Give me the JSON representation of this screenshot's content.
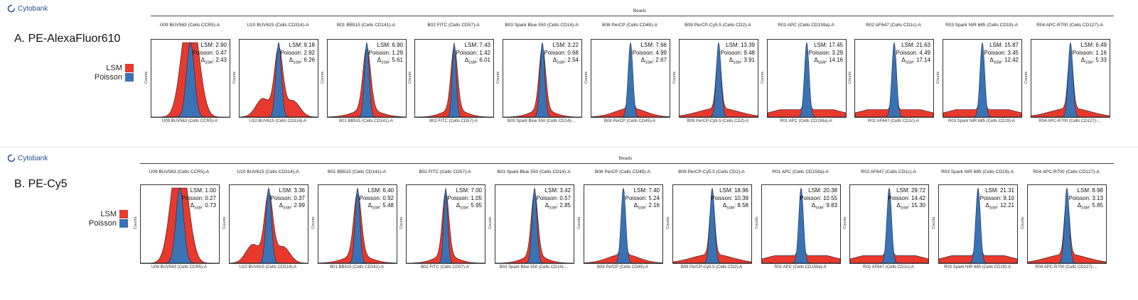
{
  "brand": "Cytobank",
  "legend": {
    "lsm_label": "LSM",
    "poisson_label": "Poisson",
    "lsm_color": "#e8392c",
    "poisson_color": "#3a73b5"
  },
  "group_label": "Beads",
  "y_axis_label": "Counts",
  "delta_label": "Δ",
  "delta_sub": "SSM",
  "plot_titles": [
    "U09 BUV563 (Cells CCR5)-A",
    "U10 BUV615 (Cells CD314)-A",
    "B01 BB515 (Cells CD141)-A",
    "B02 FITC (Cells CD57)-A",
    "B03 Spark Blue 550 (Cells CD14)-A",
    "B08 PerCP (Cells CD45)-A",
    "B09 PerCP-Cy5.5 (Cells CD2)-A",
    "R01 APC (Cells CD159a)-A",
    "R02 AF647 (Cells CD1c)-A",
    "R03 Spark NIR 685 (Cells CD19)-A",
    "R04 APC-R700 (Cells CD127)-A"
  ],
  "x_labels": [
    "U09 BUV563 (Cells CCR5)-A",
    "U10 BUV615 (Cells CD314)-A",
    "B01 BB515 (Cells CD141)-A",
    "B02 FITC (Cells CD57)-A",
    "B03 Spark Blue 550 (Cells CD14)-...",
    "B08 PerCP (Cells CD45)-A",
    "B09 PerCP-Cy5.5 (Cells CD2)-A",
    "R01 APC (Cells CD159a)-A",
    "R02 AF647 (Cells CD1c)-A",
    "R03 Spark NIR 685 (Cells CD19)-A",
    "R04 APC-R700 (Cells CD127)-..."
  ],
  "chart_data": [
    {
      "type": "area",
      "title": "A. PE-AlexaFluor610",
      "series_names": [
        "LSM",
        "Poisson"
      ],
      "plots": [
        {
          "lsm": 2.9,
          "poisson": 0.47,
          "delta": 2.43
        },
        {
          "lsm": 9.18,
          "poisson": 2.92,
          "delta": 6.26
        },
        {
          "lsm": 6.9,
          "poisson": 1.29,
          "delta": 5.61
        },
        {
          "lsm": 7.43,
          "poisson": 1.42,
          "delta": 6.01
        },
        {
          "lsm": 3.22,
          "poisson": 0.68,
          "delta": 2.54
        },
        {
          "lsm": 7.66,
          "poisson": 4.99,
          "delta": 2.67
        },
        {
          "lsm": 13.39,
          "poisson": 9.48,
          "delta": 3.91
        },
        {
          "lsm": 17.45,
          "poisson": 3.29,
          "delta": 14.16
        },
        {
          "lsm": 21.63,
          "poisson": 4.49,
          "delta": 17.14
        },
        {
          "lsm": 15.87,
          "poisson": 3.45,
          "delta": 12.42
        },
        {
          "lsm": 6.49,
          "poisson": 1.16,
          "delta": 5.33
        }
      ]
    },
    {
      "type": "area",
      "title": "B. PE-Cy5",
      "series_names": [
        "LSM",
        "Poisson"
      ],
      "plots": [
        {
          "lsm": 1.0,
          "poisson": 0.27,
          "delta": 0.73
        },
        {
          "lsm": 3.36,
          "poisson": 0.37,
          "delta": 2.99
        },
        {
          "lsm": 6.4,
          "poisson": 0.92,
          "delta": 5.48
        },
        {
          "lsm": 7.0,
          "poisson": 1.05,
          "delta": 5.95
        },
        {
          "lsm": 3.42,
          "poisson": 0.57,
          "delta": 2.85
        },
        {
          "lsm": 7.4,
          "poisson": 5.24,
          "delta": 2.16
        },
        {
          "lsm": 18.96,
          "poisson": 10.39,
          "delta": 8.58
        },
        {
          "lsm": 20.38,
          "poisson": 10.55,
          "delta": 9.83
        },
        {
          "lsm": 29.72,
          "poisson": 14.42,
          "delta": 15.3
        },
        {
          "lsm": 21.31,
          "poisson": 9.1,
          "delta": 12.21
        },
        {
          "lsm": 8.98,
          "poisson": 3.13,
          "delta": 5.85
        }
      ]
    }
  ]
}
